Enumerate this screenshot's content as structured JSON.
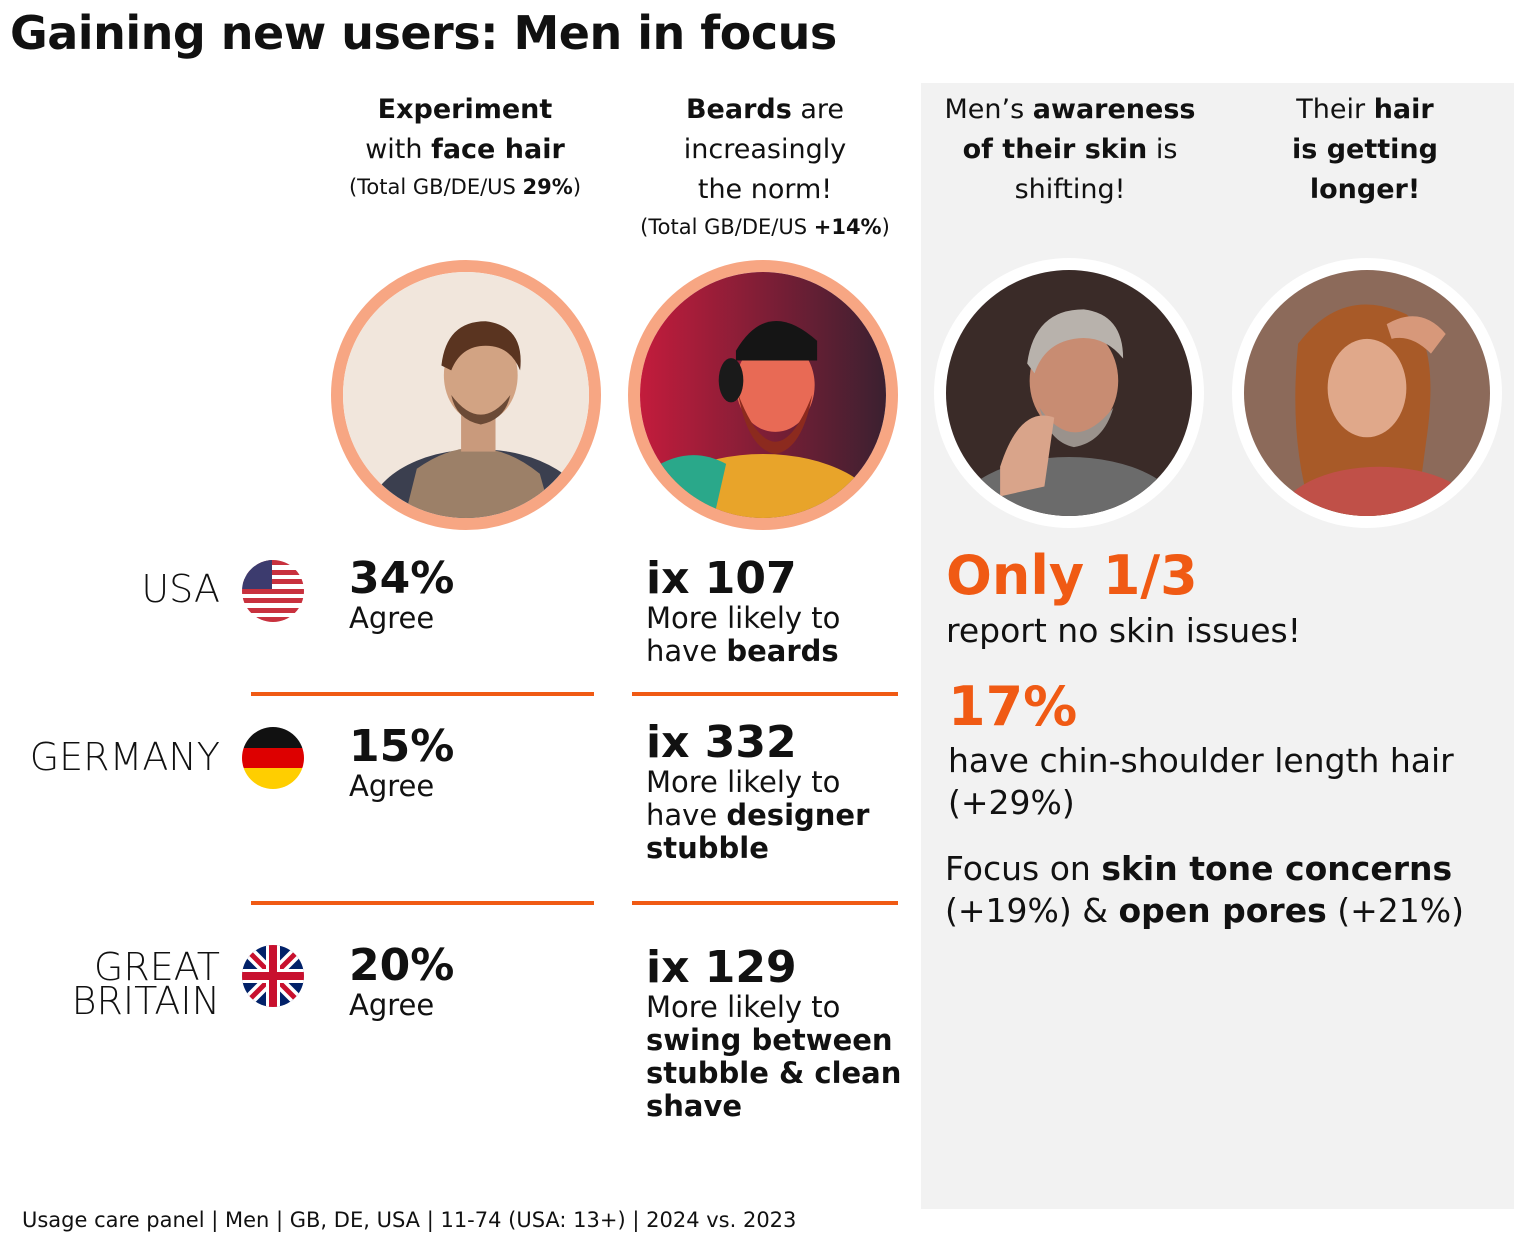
{
  "title": "Gaining new users: Men in focus",
  "columns": [
    {
      "parts": [
        "Experiment",
        "with ",
        "face hair"
      ],
      "note": "(Total GB/DE/US ",
      "note_bold": "29%",
      "note_end": ")"
    },
    {
      "parts": [
        "Beards",
        " are",
        "increasingly",
        "the norm!"
      ],
      "note": "(Total GB/DE/US ",
      "note_bold": "+14%",
      "note_end": ")"
    },
    {
      "parts": [
        "Men’s ",
        "awareness",
        "of their skin",
        " is",
        "shifting!"
      ]
    },
    {
      "parts": [
        "Their ",
        "hair",
        "is getting",
        "longer!"
      ]
    }
  ],
  "photos": [
    "man-with-scarf-photo",
    "bearded-man-headphones-photo",
    "grey-haired-man-skin-photo",
    "long-haired-man-photo"
  ],
  "rows": [
    {
      "country_lines": [
        "USA"
      ],
      "flag": "usa-flag-icon",
      "pct": "34%",
      "pct_label": "Agree",
      "ix": "ix 107",
      "ix_label": "More likely to",
      "ix_rest_plain": "have ",
      "ix_rest_bold": "beards",
      "ix_rest_bold2": ""
    },
    {
      "country_lines": [
        "GERMANY"
      ],
      "flag": "germany-flag-icon",
      "pct": "15%",
      "pct_label": "Agree",
      "ix": "ix 332",
      "ix_label": "More likely to",
      "ix_rest_plain": "have ",
      "ix_rest_bold": "designer",
      "ix_rest_bold2": "stubble"
    },
    {
      "country_lines": [
        "GREAT",
        "BRITAIN"
      ],
      "flag": "uk-flag-icon",
      "pct": "20%",
      "pct_label": "Agree",
      "ix": "ix 129",
      "ix_label": "More likely to",
      "ix_rest_plain": "",
      "ix_rest_bold": "swing between",
      "ix_rest_bold2": "stubble & clean",
      "ix_rest_bold3": "shave"
    }
  ],
  "right": {
    "stat1": "Only 1/3",
    "stat1_text": "report no skin issues!",
    "stat2": "17%",
    "stat2_text": "have chin-shoulder length hair",
    "stat2_change": "(+29%)",
    "focus_plain": "Focus on ",
    "focus_bold1": "skin tone concerns",
    "focus_change1": "(+19%) & ",
    "focus_bold2": "open pores",
    "focus_change2": " (+21%)"
  },
  "footer": "Usage care panel | Men | GB, DE, USA | 11-74 (USA: 13+) | 2024 vs. 2023",
  "colors": {
    "accent": "#f05a14",
    "ring": "#f7a683",
    "panel": "#f2f2f2"
  }
}
